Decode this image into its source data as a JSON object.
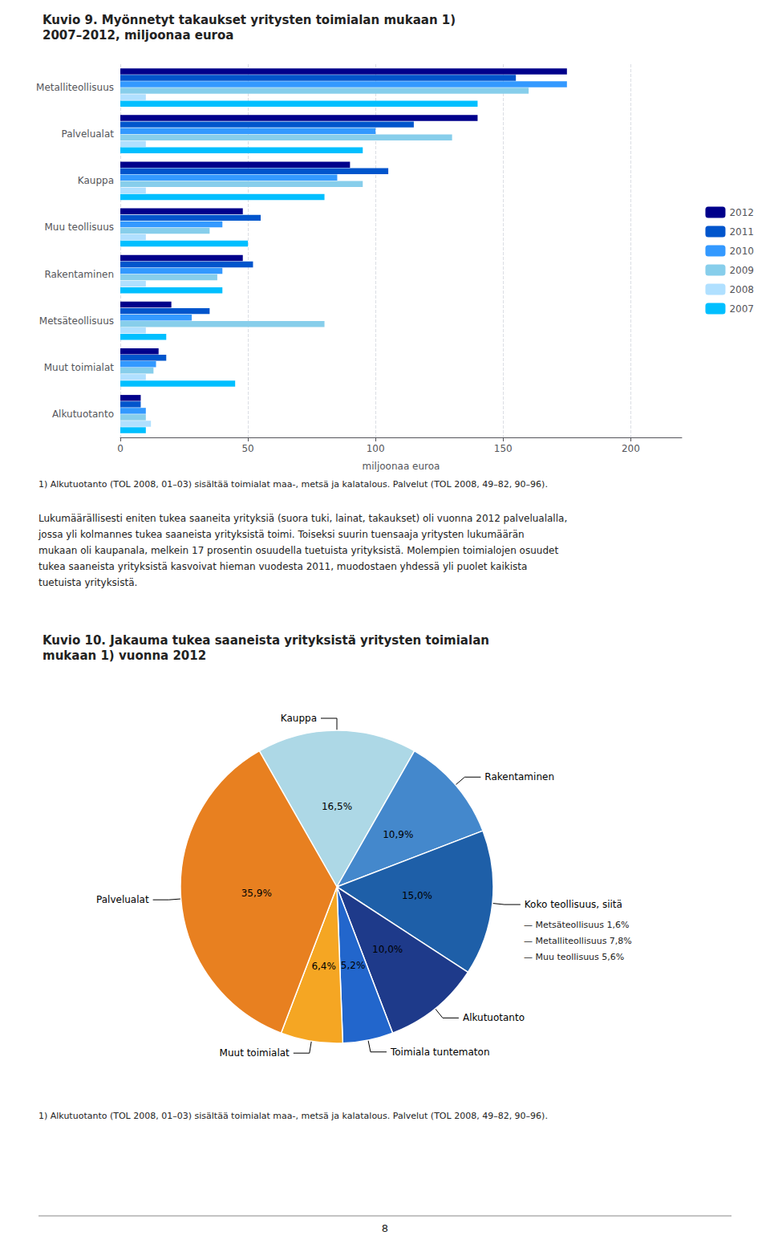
{
  "chart_data": [
    {
      "type": "bar",
      "orientation": "horizontal",
      "title": "Kuvio 9. Myönnetyt takaukset yritysten toimialan mukaan 1)",
      "subtitle": "2007–2012, miljoonaa euroa",
      "categories": [
        "Metalliteollisuus",
        "Palvelualat",
        "Kauppa",
        "Muu teollisuus",
        "Rakentaminen",
        "Metsäteollisuus",
        "Muut toimialat",
        "Alkutuotanto"
      ],
      "series": [
        {
          "name": "2012",
          "color": "#00008B",
          "values": [
            175,
            140,
            90,
            48,
            48,
            20,
            15,
            8
          ]
        },
        {
          "name": "2011",
          "color": "#0055CC",
          "values": [
            155,
            115,
            105,
            55,
            52,
            35,
            18,
            8
          ]
        },
        {
          "name": "2010",
          "color": "#3399FF",
          "values": [
            175,
            100,
            85,
            40,
            40,
            28,
            14,
            10
          ]
        },
        {
          "name": "2009",
          "color": "#87CEEB",
          "values": [
            160,
            130,
            95,
            35,
            38,
            80,
            13,
            10
          ]
        },
        {
          "name": "2008",
          "color": "#B0E0FF",
          "values": [
            10,
            10,
            10,
            10,
            10,
            10,
            10,
            12
          ]
        },
        {
          "name": "2007",
          "color": "#00BFFF",
          "values": [
            140,
            95,
            80,
            50,
            40,
            18,
            45,
            10
          ]
        }
      ],
      "xlabel": "miljoonaa euroa",
      "xlim": [
        0,
        220
      ],
      "xticks": [
        0,
        50,
        100,
        150,
        200
      ],
      "grid": true,
      "legend": "right",
      "annotations": [
        "1) Alkutuotanto (TOL 2008, 01–03) sisältää toimialat maa-, metsä ja kalatalous. Palvelut (TOL 2008, 49–82, 90–96).",
        "Lukumäärällisesti eniten tukea saaneita yrityksiä (suora tuki, lainat, takaukset) oli vuonna 2012 palvelualalla,\njossa yli kolmannes tukea saaneista yrityksistä toimi. Toiseksi suurin tuensaaja yritysten lukumäärän\nmukaan oli kaupanala, melkein 17 prosentin osuudella tuetuista yrityksistä. Molempien toimialojen osuudet\ntukea saaneista yrityksistä kasvoivat hieman vuodesta 2011, muodostaen yhdessä yli puolet kaikista\ntuetuista yrityksistä."
      ]
    },
    {
      "type": "pie",
      "title": "Kuvio 10. Jakauma tukea saaneista yrityksistä yritysten toimialan",
      "subtitle": "mukaan 1) vuonna 2012",
      "categories": [
        "Kauppa",
        "Rakentaminen",
        "Koko teollisuus, siitä",
        "Alkutuotanto",
        "Toimiala tuntematon",
        "Muut toimialat",
        "Palvelualat"
      ],
      "values": [
        16.5,
        10.9,
        15.0,
        10.0,
        5.2,
        6.4,
        35.9
      ],
      "value_labels": [
        "16,5%",
        "10,9%",
        "15,0%",
        "10,0%",
        "5,2%",
        "6,4%",
        "35,9%"
      ],
      "colors": [
        "#ADD8E6",
        "#4488CC",
        "#1E5FA8",
        "#1E3A8A",
        "#2266CC",
        "#F5A623",
        "#E88020"
      ],
      "data_labels": true,
      "annotations": [
        "— Metsäteollisuus 1,6%",
        "— Metalliteollisuus 7,8%",
        "— Muu teollisuus 5,6%",
        "1) Alkutuotanto (TOL 2008, 01–03) sisältää toimialat maa-, metsä ja kalatalous. Palvelut (TOL 2008, 49–82, 90–96).",
        "8"
      ]
    }
  ]
}
